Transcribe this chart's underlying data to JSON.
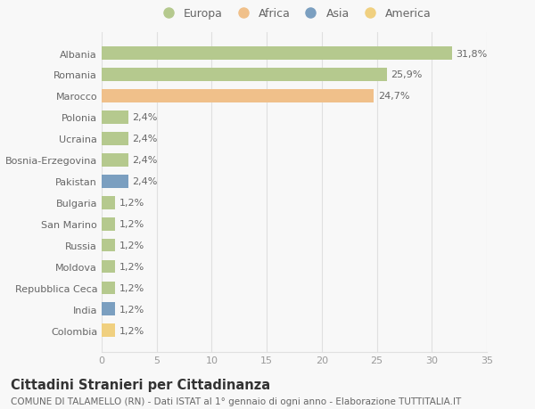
{
  "categories": [
    "Albania",
    "Romania",
    "Marocco",
    "Polonia",
    "Ucraina",
    "Bosnia-Erzegovina",
    "Pakistan",
    "Bulgaria",
    "San Marino",
    "Russia",
    "Moldova",
    "Repubblica Ceca",
    "India",
    "Colombia"
  ],
  "values": [
    31.8,
    25.9,
    24.7,
    2.4,
    2.4,
    2.4,
    2.4,
    1.2,
    1.2,
    1.2,
    1.2,
    1.2,
    1.2,
    1.2
  ],
  "labels": [
    "31,8%",
    "25,9%",
    "24,7%",
    "2,4%",
    "2,4%",
    "2,4%",
    "2,4%",
    "1,2%",
    "1,2%",
    "1,2%",
    "1,2%",
    "1,2%",
    "1,2%",
    "1,2%"
  ],
  "colors": [
    "#b5c98e",
    "#b5c98e",
    "#f0c08a",
    "#b5c98e",
    "#b5c98e",
    "#b5c98e",
    "#7b9fc0",
    "#b5c98e",
    "#b5c98e",
    "#b5c98e",
    "#b5c98e",
    "#b5c98e",
    "#7b9fc0",
    "#f0d080"
  ],
  "legend_labels": [
    "Europa",
    "Africa",
    "Asia",
    "America"
  ],
  "legend_colors": [
    "#b5c98e",
    "#f0c08a",
    "#7b9fc0",
    "#f0d080"
  ],
  "xlim": [
    0,
    35
  ],
  "xticks": [
    0,
    5,
    10,
    15,
    20,
    25,
    30,
    35
  ],
  "title": "Cittadini Stranieri per Cittadinanza",
  "subtitle": "COMUNE DI TALAMELLO (RN) - Dati ISTAT al 1° gennaio di ogni anno - Elaborazione TUTTITALIA.IT",
  "background_color": "#f8f8f8",
  "grid_color": "#e0e0e0",
  "bar_height": 0.62,
  "title_fontsize": 10.5,
  "subtitle_fontsize": 7.5,
  "label_fontsize": 8,
  "tick_fontsize": 8,
  "legend_fontsize": 9
}
